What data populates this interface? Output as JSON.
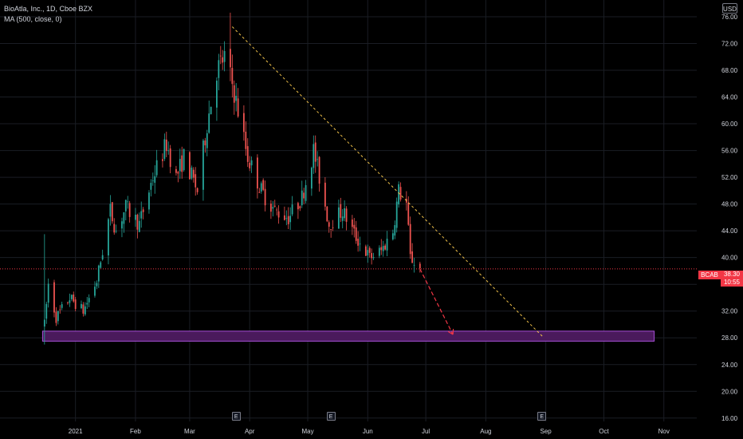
{
  "legend": {
    "symbol_line": "BioAtla, Inc., 1D, Cboe BZX",
    "ma_line": "MA (500, close, 0)"
  },
  "currency_badge": "USD",
  "last_price": {
    "ticker": "BCAB",
    "value": "38.30",
    "countdown": "10:55"
  },
  "earnings_marker": "E",
  "colors": {
    "up": "#26a69a",
    "down": "#ef5350",
    "trendline": "#f0c24a",
    "projection": "#f23645",
    "zone_fill": "#4a1a5c",
    "zone_border": "#a64fd6"
  },
  "chart_data": {
    "type": "candlestick",
    "symbol": "BCAB",
    "ylim": [
      15.5,
      78.5
    ],
    "y_ticks": [
      "16.00",
      "20.00",
      "24.00",
      "28.00",
      "32.00",
      "36.00",
      "40.00",
      "44.00",
      "48.00",
      "52.00",
      "56.00",
      "60.00",
      "64.00",
      "68.00",
      "72.00",
      "76.00"
    ],
    "x_ticks": [
      {
        "label": "2021",
        "date": "2021-01-01"
      },
      {
        "label": "Feb",
        "date": "2021-02-01"
      },
      {
        "label": "Mar",
        "date": "2021-03-01"
      },
      {
        "label": "Apr",
        "date": "2021-04-01"
      },
      {
        "label": "May",
        "date": "2021-05-01"
      },
      {
        "label": "Jun",
        "date": "2021-06-01"
      },
      {
        "label": "Jul",
        "date": "2021-07-01"
      },
      {
        "label": "Aug",
        "date": "2021-08-01"
      },
      {
        "label": "Sep",
        "date": "2021-09-01"
      },
      {
        "label": "Oct",
        "date": "2021-10-01"
      },
      {
        "label": "Nov",
        "date": "2021-11-01"
      }
    ],
    "xlim": [
      "2020-11-23",
      "2021-11-18"
    ],
    "earnings_dates": [
      "2021-03-25",
      "2021-05-13",
      "2021-08-30"
    ],
    "price_path": [
      [
        "2020-12-16",
        30.0
      ],
      [
        "2020-12-18",
        36.0
      ],
      [
        "2020-12-22",
        31.0
      ],
      [
        "2020-12-29",
        34.0
      ],
      [
        "2021-01-05",
        32.0
      ],
      [
        "2021-01-12",
        36.5
      ],
      [
        "2021-01-19",
        47.0
      ],
      [
        "2021-01-22",
        44.0
      ],
      [
        "2021-01-27",
        47.5
      ],
      [
        "2021-02-03",
        45.0
      ],
      [
        "2021-02-10",
        52.0
      ],
      [
        "2021-02-17",
        57.0
      ],
      [
        "2021-02-22",
        52.0
      ],
      [
        "2021-02-26",
        55.0
      ],
      [
        "2021-03-05",
        50.0
      ],
      [
        "2021-03-10",
        60.0
      ],
      [
        "2021-03-15",
        68.0
      ],
      [
        "2021-03-19",
        70.0
      ],
      [
        "2021-03-23",
        66.0
      ],
      [
        "2021-03-26",
        62.0
      ],
      [
        "2021-03-31",
        55.0
      ],
      [
        "2021-04-07",
        50.0
      ],
      [
        "2021-04-14",
        47.0
      ],
      [
        "2021-04-21",
        46.0
      ],
      [
        "2021-04-28",
        49.0
      ],
      [
        "2021-05-04",
        56.0
      ],
      [
        "2021-05-07",
        52.0
      ],
      [
        "2021-05-12",
        45.0
      ],
      [
        "2021-05-19",
        47.0
      ],
      [
        "2021-05-26",
        43.0
      ],
      [
        "2021-06-02",
        40.0
      ],
      [
        "2021-06-08",
        41.0
      ],
      [
        "2021-06-14",
        44.0
      ],
      [
        "2021-06-17",
        50.0
      ],
      [
        "2021-06-21",
        48.0
      ],
      [
        "2021-06-23",
        40.0
      ],
      [
        "2021-06-28",
        38.3
      ]
    ],
    "pattern_high": {
      "date": "2021-03-22",
      "value": 76.6
    },
    "pattern_low": {
      "date": "2020-12-16",
      "value": 27.0
    },
    "last_price": 38.3,
    "trendline": {
      "from": [
        "2021-03-23",
        74.5
      ],
      "to": [
        "2021-08-31",
        28.0
      ]
    },
    "projection": {
      "from": [
        "2021-06-28",
        38.3
      ],
      "to": [
        "2021-07-15",
        28.5
      ]
    },
    "target_zone": {
      "from": "2020-12-15",
      "to": "2021-10-27",
      "low": 27.5,
      "high": 29.0
    }
  }
}
